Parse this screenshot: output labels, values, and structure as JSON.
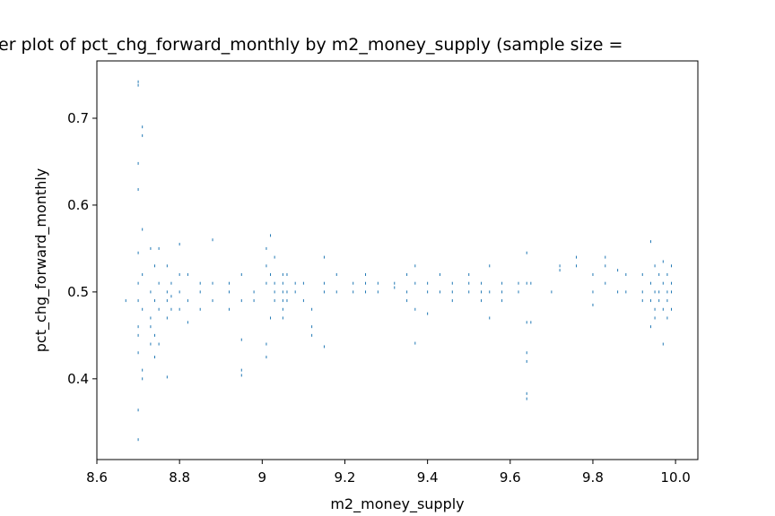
{
  "chart_data": {
    "type": "scatter",
    "title": "er plot of pct_chg_forward_monthly by m2_money_supply (sample size =",
    "xlabel": "m2_money_supply",
    "ylabel": "pct_chg_forward_monthly",
    "color": "#1f77b4",
    "xlim": [
      8.6,
      10.054
    ],
    "ylim": [
      0.307,
      0.766
    ],
    "xticks": [
      8.6,
      8.8,
      9.0,
      9.2,
      9.4,
      9.6,
      9.8,
      {
        "value": 10,
        "label": "10.0"
      }
    ],
    "yticks": [
      0.4,
      0.5,
      0.6,
      0.7
    ],
    "x": [
      8.67,
      8.7,
      8.7,
      8.7,
      8.7,
      8.7,
      8.7,
      8.7,
      8.7,
      8.7,
      8.7,
      8.7,
      8.7,
      8.71,
      8.71,
      8.71,
      8.71,
      8.71,
      8.71,
      8.71,
      8.73,
      8.73,
      8.73,
      8.73,
      8.73,
      8.74,
      8.74,
      8.74,
      8.74,
      8.75,
      8.75,
      8.75,
      8.75,
      8.77,
      8.77,
      8.77,
      8.77,
      8.77,
      8.78,
      8.78,
      8.78,
      8.8,
      8.8,
      8.8,
      8.8,
      8.82,
      8.82,
      8.82,
      8.85,
      8.85,
      8.85,
      8.88,
      8.88,
      8.88,
      8.92,
      8.92,
      8.92,
      8.95,
      8.95,
      8.95,
      8.95,
      8.95,
      8.98,
      8.98,
      9.01,
      9.01,
      9.01,
      9.01,
      9.01,
      9.02,
      9.02,
      9.02,
      9.03,
      9.03,
      9.03,
      9.03,
      9.05,
      9.05,
      9.05,
      9.05,
      9.05,
      9.05,
      9.06,
      9.06,
      9.06,
      9.08,
      9.08,
      9.1,
      9.1,
      9.12,
      9.12,
      9.12,
      9.15,
      9.15,
      9.15,
      9.15,
      9.18,
      9.18,
      9.22,
      9.22,
      9.25,
      9.25,
      9.25,
      9.28,
      9.28,
      9.32,
      9.32,
      9.35,
      9.35,
      9.35,
      9.37,
      9.37,
      9.37,
      9.37,
      9.4,
      9.4,
      9.4,
      9.43,
      9.43,
      9.46,
      9.46,
      9.46,
      9.5,
      9.5,
      9.5,
      9.53,
      9.53,
      9.53,
      9.55,
      9.55,
      9.55,
      9.58,
      9.58,
      9.58,
      9.62,
      9.62,
      9.64,
      9.64,
      9.64,
      9.64,
      9.64,
      9.64,
      9.64,
      9.65,
      9.65,
      9.7,
      9.72,
      9.72,
      9.76,
      9.76,
      9.8,
      9.8,
      9.8,
      9.83,
      9.83,
      9.83,
      9.86,
      9.86,
      9.88,
      9.88,
      9.92,
      9.92,
      9.92,
      9.94,
      9.94,
      9.94,
      9.94,
      9.95,
      9.95,
      9.95,
      9.95,
      9.96,
      9.96,
      9.96,
      9.97,
      9.97,
      9.97,
      9.97,
      9.98,
      9.98,
      9.98,
      9.98,
      9.99,
      9.99,
      9.99,
      9.99
    ],
    "values": [
      0.49,
      0.742,
      0.738,
      0.648,
      0.618,
      0.545,
      0.51,
      0.49,
      0.46,
      0.45,
      0.43,
      0.364,
      0.33,
      0.69,
      0.68,
      0.572,
      0.52,
      0.48,
      0.41,
      0.4,
      0.55,
      0.5,
      0.47,
      0.46,
      0.44,
      0.53,
      0.49,
      0.45,
      0.425,
      0.55,
      0.51,
      0.48,
      0.44,
      0.53,
      0.5,
      0.49,
      0.47,
      0.402,
      0.51,
      0.495,
      0.48,
      0.555,
      0.52,
      0.5,
      0.48,
      0.52,
      0.49,
      0.465,
      0.51,
      0.5,
      0.48,
      0.56,
      0.51,
      0.49,
      0.51,
      0.5,
      0.48,
      0.52,
      0.49,
      0.445,
      0.41,
      0.404,
      0.5,
      0.49,
      0.55,
      0.53,
      0.51,
      0.44,
      0.425,
      0.565,
      0.52,
      0.47,
      0.54,
      0.51,
      0.5,
      0.49,
      0.52,
      0.51,
      0.5,
      0.49,
      0.48,
      0.47,
      0.52,
      0.5,
      0.49,
      0.51,
      0.5,
      0.51,
      0.49,
      0.48,
      0.46,
      0.45,
      0.54,
      0.51,
      0.5,
      0.437,
      0.52,
      0.5,
      0.51,
      0.5,
      0.52,
      0.51,
      0.5,
      0.51,
      0.5,
      0.51,
      0.505,
      0.52,
      0.5,
      0.49,
      0.53,
      0.51,
      0.48,
      0.441,
      0.51,
      0.5,
      0.475,
      0.52,
      0.5,
      0.51,
      0.5,
      0.49,
      0.52,
      0.51,
      0.5,
      0.51,
      0.5,
      0.49,
      0.53,
      0.5,
      0.47,
      0.51,
      0.5,
      0.49,
      0.51,
      0.5,
      0.545,
      0.51,
      0.465,
      0.43,
      0.42,
      0.383,
      0.377,
      0.51,
      0.465,
      0.5,
      0.53,
      0.525,
      0.54,
      0.53,
      0.52,
      0.5,
      0.485,
      0.54,
      0.53,
      0.51,
      0.525,
      0.5,
      0.52,
      0.5,
      0.52,
      0.5,
      0.49,
      0.558,
      0.51,
      0.49,
      0.46,
      0.53,
      0.5,
      0.48,
      0.47,
      0.52,
      0.5,
      0.49,
      0.535,
      0.51,
      0.48,
      0.44,
      0.52,
      0.5,
      0.49,
      0.47,
      0.53,
      0.51,
      0.5,
      0.48
    ]
  }
}
